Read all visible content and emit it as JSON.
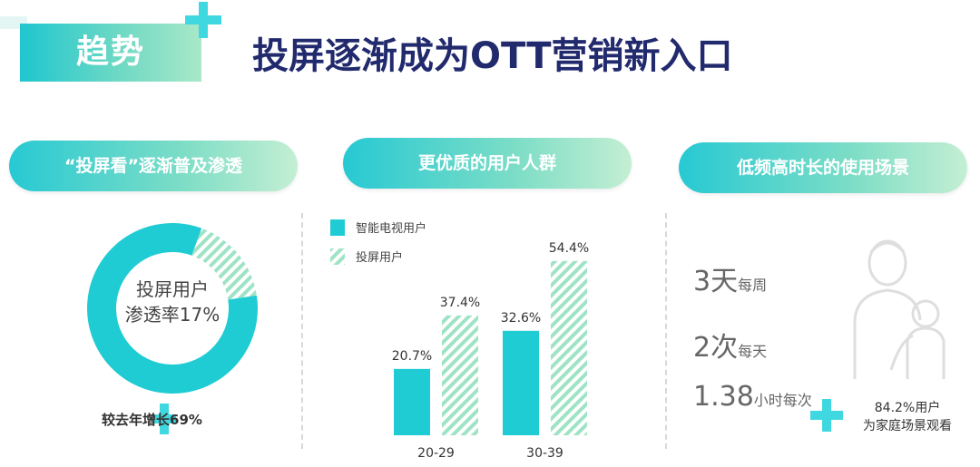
{
  "header": {
    "tag": "趋势",
    "title": "投屏逐渐成为OTT营销新入口"
  },
  "sections": {
    "penetration": {
      "pill": "“投屏看”逐渐普及渗透",
      "donut_line1": "投屏用户",
      "donut_line2": "渗透率17%",
      "growth": "较去年增长69%"
    },
    "audience": {
      "pill": "更优质的用户人群"
    },
    "usage": {
      "pill": "低频高时长的使用场景",
      "stat1_num": "3天",
      "stat1_unit": "每周",
      "stat2_num": "2次",
      "stat2_unit": "每天",
      "stat3_num": "1.38",
      "stat3_unit": "小时每次",
      "family_line1": "84.2%用户",
      "family_line2": "为家庭场景观看"
    }
  },
  "colors": {
    "teal": "#1fccd4",
    "hatch": "#9ee3c6",
    "navy": "#222a6e"
  },
  "icons": {
    "plus": "plus-icon",
    "family": "family-silhouette-icon"
  },
  "chart_data": [
    {
      "type": "pie",
      "values": [
        17,
        83
      ],
      "categories": [
        "投屏用户",
        ""
      ]
    },
    {
      "type": "bar",
      "categories": [
        "20-29",
        "30-39"
      ],
      "series": [
        {
          "name": "智能电视用户",
          "values": [
            20.7,
            32.6
          ]
        },
        {
          "name": "投屏用户",
          "values": [
            37.4,
            54.4
          ]
        }
      ],
      "value_labels": [
        [
          "20.7%",
          "32.6%"
        ],
        [
          "37.4%",
          "54.4%"
        ]
      ],
      "ylim": [
        0,
        60
      ],
      "legend": "top-left"
    }
  ]
}
